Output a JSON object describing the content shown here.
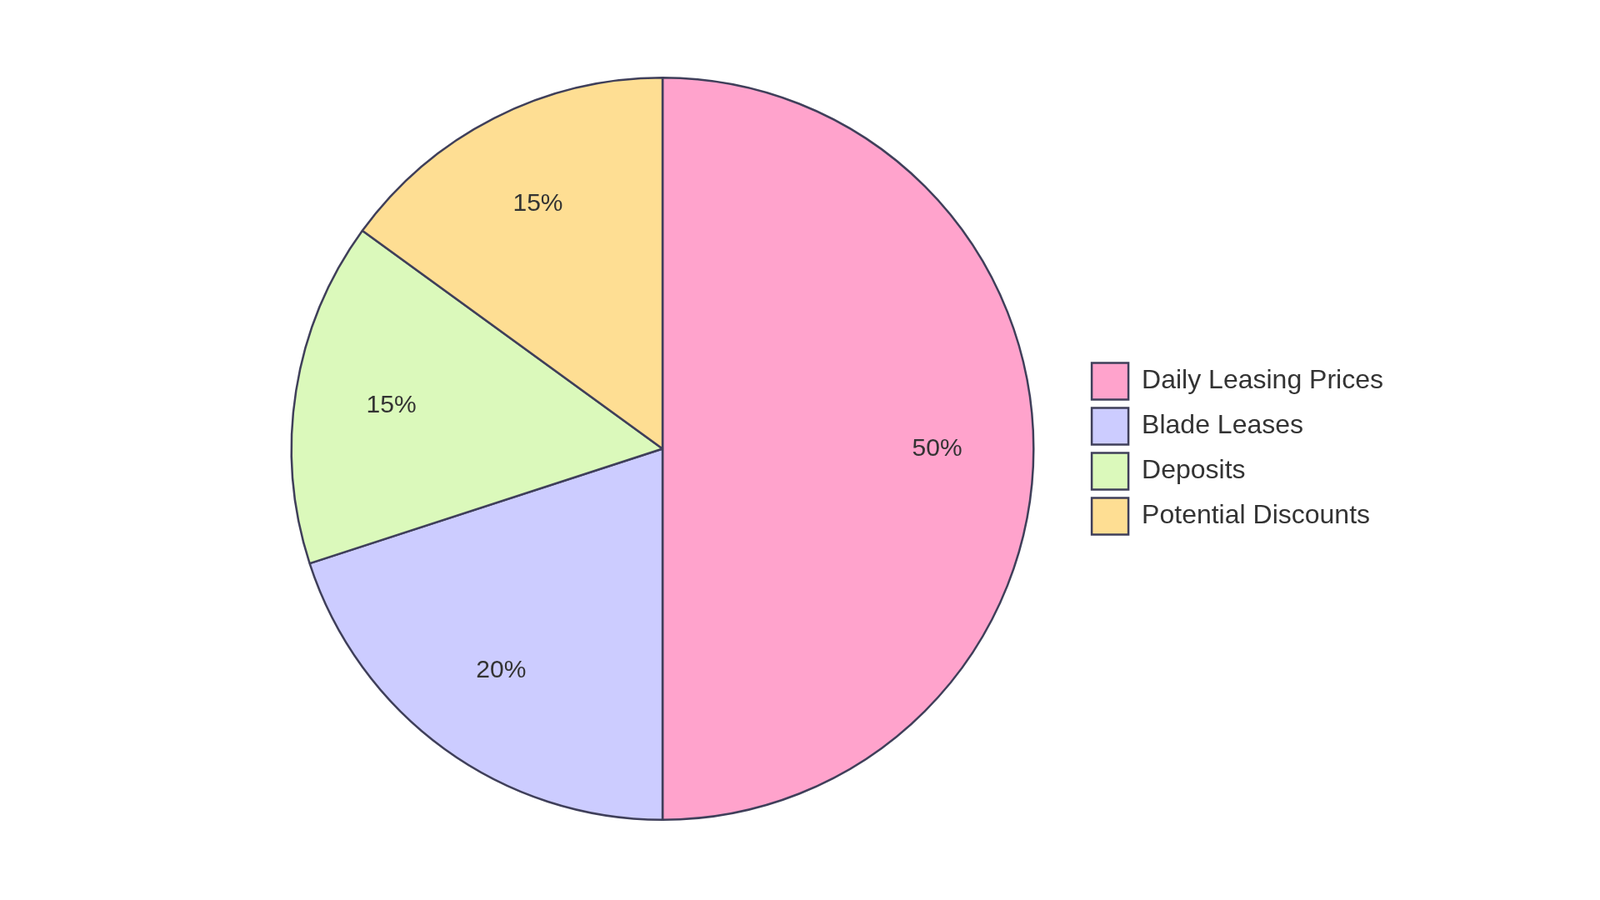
{
  "chart_data": {
    "type": "pie",
    "categories": [
      "Daily Leasing Prices",
      "Blade Leases",
      "Deposits",
      "Potential Discounts"
    ],
    "values": [
      50,
      20,
      15,
      15
    ],
    "value_labels": [
      "50%",
      "20%",
      "15%",
      "15%"
    ],
    "colors": [
      "#ffa3cc",
      "#ccccff",
      "#dbf9bb",
      "#fede93"
    ],
    "legend": "right",
    "data_labels": true
  }
}
